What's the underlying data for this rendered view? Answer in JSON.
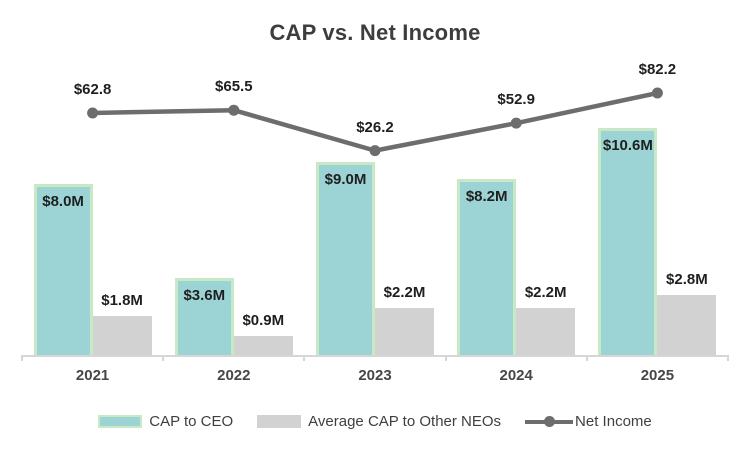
{
  "title": "CAP vs. Net Income",
  "colors": {
    "cap_ceo_fill": "#9cd4d5",
    "cap_ceo_border": "#c9e9c6",
    "neo_fill": "#d2d2d2",
    "net_income_line": "#6d6d6d",
    "axis_line": "#d6d6d6",
    "title_text": "#3d3d3d",
    "data_label_text": "#1f1f1f",
    "year_label_text": "#474747"
  },
  "chart_data": {
    "type": "bar+line combo",
    "title": "CAP vs. Net Income",
    "categories": [
      "2021",
      "2022",
      "2023",
      "2024",
      "2025"
    ],
    "grid": false,
    "axes_visible": false,
    "legend_position": "bottom",
    "series": [
      {
        "name": "CAP to CEO",
        "type": "bar",
        "values": [
          8.0,
          3.6,
          9.0,
          8.2,
          10.6
        ],
        "labels": [
          "$8.0M",
          "$3.6M",
          "$9.0M",
          "$8.2M",
          "$10.6M"
        ],
        "label_placement": "inside-top",
        "color": "#9cd4d5",
        "border_color": "#c9e9c6"
      },
      {
        "name": "Average CAP to Other NEOs",
        "type": "bar",
        "values": [
          1.8,
          0.9,
          2.2,
          2.2,
          2.8
        ],
        "labels": [
          "$1.8M",
          "$0.9M",
          "$2.2M",
          "$2.2M",
          "$2.8M"
        ],
        "label_placement": "outside-top",
        "color": "#d2d2d2"
      },
      {
        "name": "Net Income",
        "type": "line",
        "values": [
          62.8,
          65.5,
          26.2,
          52.9,
          82.2
        ],
        "labels": [
          "$62.8",
          "$65.5",
          "$26.2",
          "$52.9",
          "$82.2"
        ],
        "label_placement": "above-point",
        "color": "#6d6d6d",
        "marker": "circle"
      }
    ]
  },
  "legend": {
    "items": [
      "CAP to CEO",
      "Average CAP to Other NEOs",
      "Net Income"
    ]
  }
}
